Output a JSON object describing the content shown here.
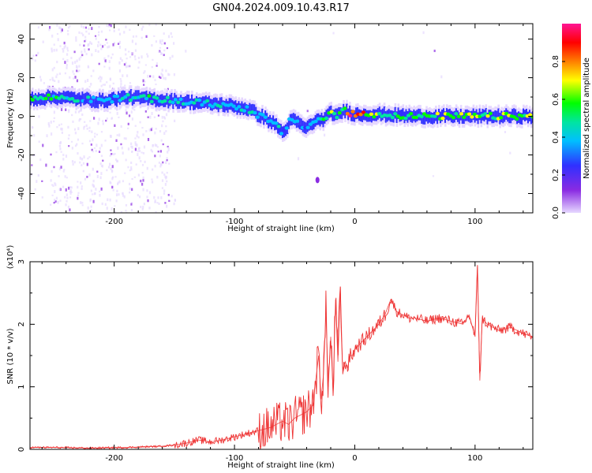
{
  "title": "GN04.2024.009.10.43.R17",
  "chart_data": [
    {
      "type": "heatmap",
      "xlabel": "Height of straight line (km)",
      "ylabel": "Frequency (Hz)",
      "xlim": [
        -270,
        148
      ],
      "ylim": [
        -50,
        48
      ],
      "xticks": [
        -200,
        -100,
        0,
        100
      ],
      "yticks": [
        -40,
        -20,
        0,
        20,
        40
      ],
      "grid": false,
      "colorbar": {
        "label": "Normalized spectral amplitude",
        "range": [
          0,
          1
        ],
        "ticks": [
          0.0,
          0.2,
          0.4,
          0.6,
          0.8
        ],
        "colors": [
          "#e6d8ff",
          "#8a2be2",
          "#3030ff",
          "#00bfff",
          "#00e5a0",
          "#00ff00",
          "#ffff00",
          "#ff7f00",
          "#ff0000",
          "#ff1493"
        ]
      },
      "ridge_x": [
        -270,
        -250,
        -230,
        -210,
        -190,
        -170,
        -150,
        -130,
        -110,
        -90,
        -75,
        -65,
        -60,
        -55,
        -50,
        -45,
        -40,
        -35,
        -30,
        -25,
        -20,
        -15,
        -10,
        -5,
        0,
        20,
        50,
        100,
        148
      ],
      "ridge_freq": [
        9,
        10,
        9,
        8,
        10,
        9,
        8,
        7,
        6,
        4,
        -1,
        -5,
        -9,
        -3,
        -2,
        -5,
        -6,
        -3,
        -2,
        -1,
        2,
        0,
        3,
        2,
        1,
        1,
        0,
        0,
        0
      ],
      "ridge_amplitude": [
        0.55,
        0.5,
        0.4,
        0.35,
        0.45,
        0.5,
        0.45,
        0.45,
        0.4,
        0.45,
        0.4,
        0.4,
        0.35,
        0.4,
        0.3,
        0.35,
        0.35,
        0.4,
        0.4,
        0.55,
        0.65,
        0.6,
        0.5,
        0.9,
        0.85,
        0.55,
        0.55,
        0.6,
        0.6
      ],
      "isolated_points": [
        {
          "x": -31,
          "freq": -33,
          "amplitude": 0.1
        }
      ]
    },
    {
      "type": "line",
      "xlabel": "Height of straight line (km)",
      "ylabel": "SNR (10 * v/v)",
      "y_multiplier": "(x10⁴)",
      "xlim": [
        -270,
        148
      ],
      "ylim": [
        0,
        3
      ],
      "xticks": [
        -200,
        -100,
        0,
        100
      ],
      "yticks": [
        0,
        1,
        2,
        3
      ],
      "grid": false,
      "color": "#ee3333",
      "x": [
        -270,
        -250,
        -220,
        -190,
        -160,
        -150,
        -140,
        -130,
        -120,
        -110,
        -100,
        -90,
        -80,
        -70,
        -60,
        -55,
        -50,
        -45,
        -40,
        -35,
        -30,
        -28,
        -26,
        -24,
        -22,
        -20,
        -18,
        -16,
        -14,
        -12,
        -10,
        -8,
        -6,
        -4,
        -2,
        0,
        5,
        10,
        15,
        20,
        25,
        30,
        35,
        40,
        45,
        50,
        60,
        70,
        80,
        90,
        95,
        100,
        102,
        104,
        106,
        110,
        120,
        130,
        140,
        148
      ],
      "y": [
        0.03,
        0.03,
        0.02,
        0.03,
        0.05,
        0.07,
        0.1,
        0.15,
        0.12,
        0.15,
        0.2,
        0.25,
        0.3,
        0.35,
        0.45,
        0.4,
        0.5,
        0.55,
        0.6,
        0.7,
        1.5,
        0.8,
        1.2,
        2.2,
        1.0,
        1.8,
        0.9,
        2.4,
        1.4,
        2.6,
        1.2,
        1.4,
        1.3,
        1.5,
        1.5,
        1.6,
        1.7,
        1.8,
        1.9,
        2.0,
        2.15,
        2.4,
        2.2,
        2.15,
        2.1,
        2.1,
        2.05,
        2.1,
        2.05,
        2.0,
        2.15,
        1.8,
        2.95,
        1.1,
        2.1,
        2.0,
        1.9,
        1.95,
        1.85,
        1.8
      ]
    }
  ]
}
